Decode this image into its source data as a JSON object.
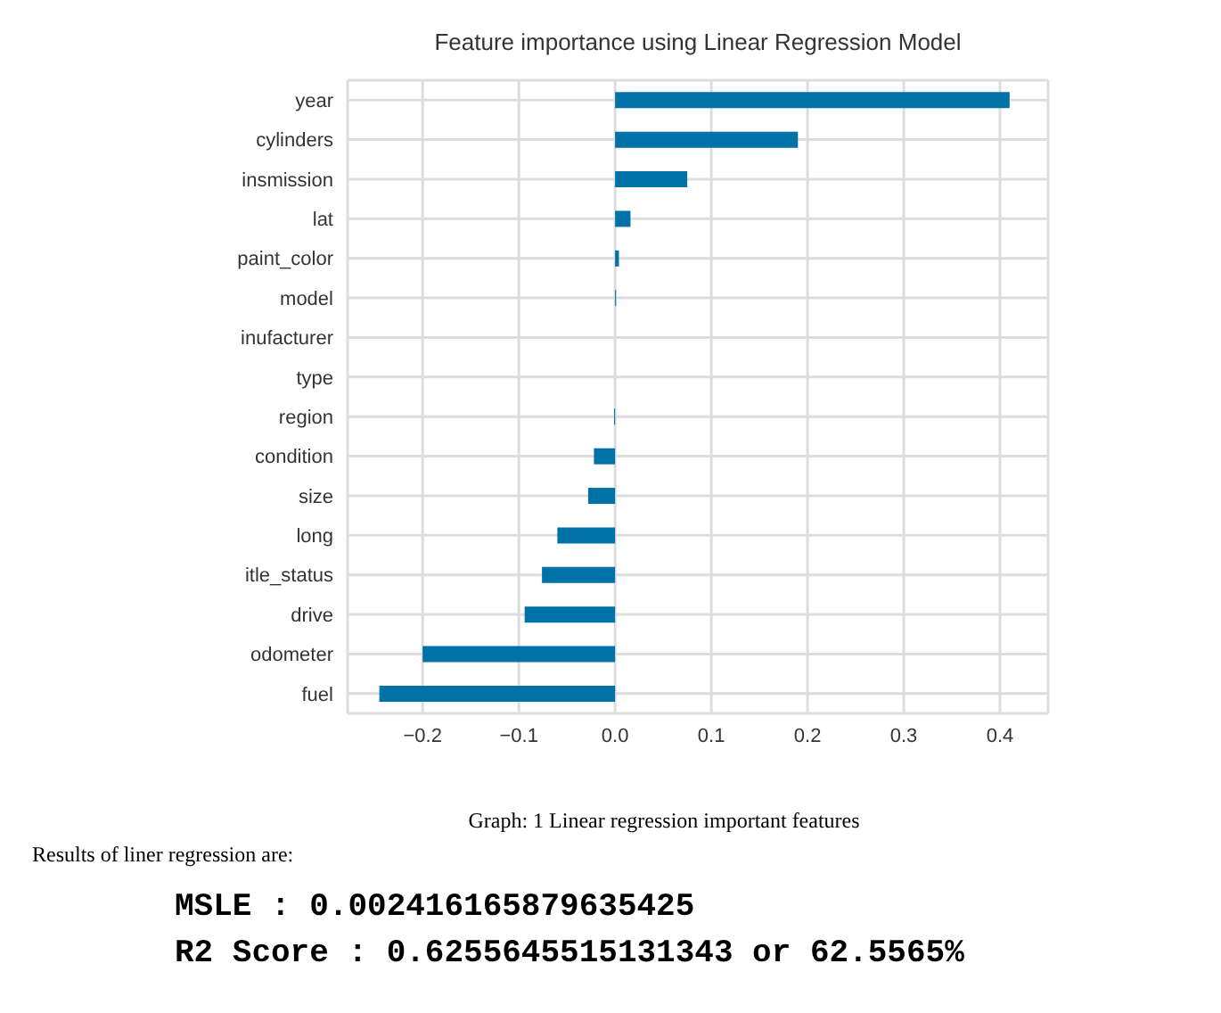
{
  "chart_data": {
    "type": "bar",
    "orientation": "horizontal",
    "title": "Feature importance using Linear Regression Model",
    "categories": [
      "year",
      "cylinders",
      "insmission",
      "lat",
      "paint_color",
      "model",
      "inufacturer",
      "type",
      "region",
      "condition",
      "size",
      "long",
      "itle_status",
      "drive",
      "odometer",
      "fuel"
    ],
    "values": [
      0.41,
      0.19,
      0.075,
      0.016,
      0.004,
      0.001,
      0,
      0,
      -0.001,
      -0.022,
      -0.028,
      -0.06,
      -0.076,
      -0.094,
      -0.2,
      -0.245
    ],
    "color": "#0072a8",
    "xlim": [
      -0.278,
      0.45
    ],
    "xticks": [
      -0.2,
      -0.1,
      {
        "value": 0,
        "label": "0.0"
      },
      0.1,
      0.2,
      0.3,
      0.4
    ],
    "grid": true,
    "annotations": [
      "Graph: 1 Linear regression important features",
      "Results of liner regression are:",
      "MSLE : 0.002416165879635425",
      "R2 Score : 0.6255645515131343 or 62.5565%"
    ]
  }
}
